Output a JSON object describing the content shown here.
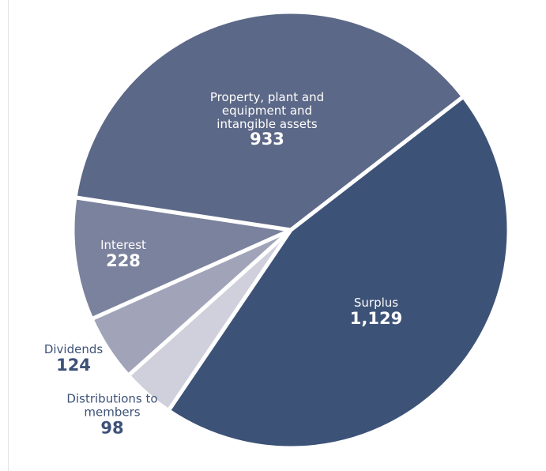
{
  "chart_data": {
    "type": "pie",
    "categories": [
      "Surplus",
      "Distributions to members",
      "Dividends",
      "Interest",
      "Property, plant and equipment and intangible assets"
    ],
    "values": [
      1129,
      98,
      124,
      228,
      933
    ],
    "value_labels": [
      "1,129",
      "98",
      "124",
      "228",
      "933"
    ],
    "colors": [
      "#3d5277",
      "#cfd0db",
      "#a1a4b9",
      "#7b829d",
      "#5c6887"
    ]
  }
}
